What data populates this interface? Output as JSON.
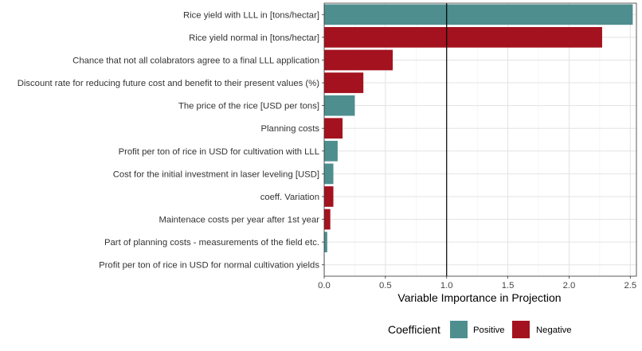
{
  "chart_data": {
    "type": "bar",
    "orientation": "horizontal",
    "xlabel": "Variable Importance in Projection",
    "ylabel": "",
    "xlim": [
      0,
      2.55
    ],
    "x_ticks": [
      0,
      0.5,
      1,
      1.5,
      2,
      2.5
    ],
    "x_tick_labels": [
      "0.0",
      "0.5",
      "1.0",
      "1.5",
      "2.0",
      "2.5"
    ],
    "reference_line": 1.0,
    "grid": true,
    "legend": {
      "title": "Coefficient",
      "placement": "bottom",
      "entries": [
        {
          "key": "Positive",
          "label": "Positive",
          "color": "#4e8e8f"
        },
        {
          "key": "Negative",
          "label": "Negative",
          "color": "#a3121e"
        }
      ]
    },
    "categories": [
      "Rice yield with LLL in [tons/hectar]",
      "Rice yield normal in [tons/hectar]",
      "Chance that not all colabrators agree to a final LLL application",
      "Discount rate for reducing future cost and benefit to their present values (%)",
      "The price of the rice [USD per tons]",
      "Planning costs",
      "Profit per ton of rice in USD for cultivation with LLL",
      "Cost for the initial investment in laser leveling  [USD]",
      "coeff. Variation",
      "Maintenace costs per year after 1st year",
      "Part of planning costs - measurements of the field etc.",
      "Profit per ton of rice in USD for normal cultivation yields"
    ],
    "values": [
      2.52,
      2.27,
      0.56,
      0.32,
      0.25,
      0.15,
      0.11,
      0.075,
      0.075,
      0.05,
      0.025,
      0.003
    ],
    "coefficient": [
      "Positive",
      "Negative",
      "Negative",
      "Negative",
      "Positive",
      "Negative",
      "Positive",
      "Positive",
      "Negative",
      "Negative",
      "Positive",
      "Positive"
    ]
  }
}
